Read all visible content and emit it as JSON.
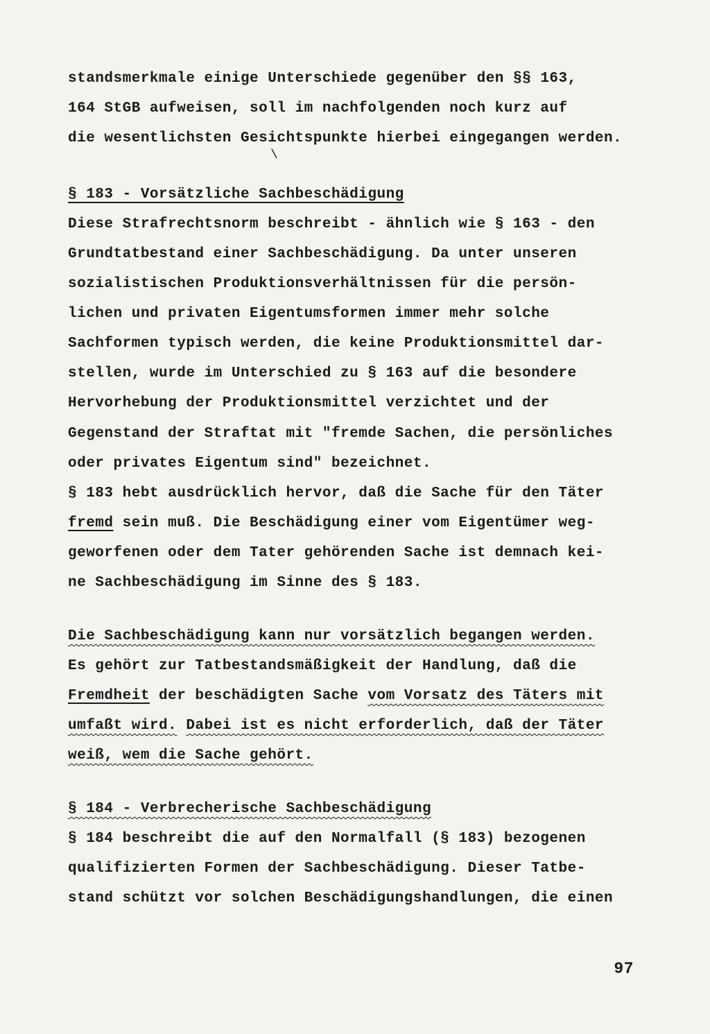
{
  "colors": {
    "background": "#f5f3ef",
    "text": "#1a1a1a"
  },
  "typography": {
    "family": "Courier New",
    "size_pt": 21,
    "weight": "bold",
    "line_height": 2.05,
    "letter_spacing": 0.5
  },
  "intro": {
    "line1a": "standsmerkmale einige",
    "line1b": " Unterschiede gegenüber den §§ 163,",
    "line2": "164 StGB aufweisen, soll im nachfolgenden noch kurz auf",
    "line3": "die wesentlichsten Gesichtspunkte hierbei eingegangen werden."
  },
  "tick": "\\",
  "s183": {
    "heading": "§ 183 - Vorsätzliche Sachbeschädigung",
    "p1_l1": "Diese Strafrechtsnorm beschreibt - ähnlich wie § 163 - den",
    "p1_l2": "Grundtatbestand einer Sachbeschädigung. Da unter unseren",
    "p1_l3": "sozialistischen Produktionsverhältnissen für die persön-",
    "p1_l4": "lichen und privaten Eigentumsformen immer mehr solche",
    "p1_l5": "Sachformen typisch werden, die keine Produktionsmittel dar-",
    "p1_l6": "stellen, wurde im Unterschied zu § 163 auf die besondere",
    "p1_l7": "Hervorhebung der Produktionsmittel verzichtet und der",
    "p1_l8": "Gegenstand der Straftat mit \"fremde Sachen, die persönliches",
    "p1_l9": "oder privates Eigentum  sind\" bezeichnet.",
    "p1_l10a": "§ 183 hebt ausdrücklich hervor, daß die Sache für den Täter",
    "p1_l10u": "fremd",
    "p1_l10b": " sein muß. Die Beschädigung einer vom Eigentümer weg-",
    "p1_l11": "geworfenen oder dem Tater gehörenden Sache ist demnach kei-",
    "p1_l12": "ne Sachbeschädigung im Sinne des § 183.",
    "p2_l1": "Die Sachbeschädigung kann nur vorsätzlich begangen werden.",
    "p2_l2": "Es gehört zur Tatbestandsmäßigkeit der Handlung, daß die",
    "p2_l3u": "Fremdheit",
    "p2_l3b": " der beschädigten Sache ",
    "p2_l3w": "vom Vorsatz des Täters mit",
    "p2_l4w": "umfaßt wird.",
    "p2_l4b": " ",
    "p2_l4w2": "Dabei ist es nicht erforderlich, daß der Täter",
    "p2_l5w": "weiß, wem die Sache gehört."
  },
  "s184": {
    "heading": "§ 184 - Verbrecherische Sachbeschädigung",
    "l1": "§ 184 beschreibt die auf den Normalfall (§ 183) bezogenen",
    "l2": "qualifizierten Formen der Sachbeschädigung. Dieser Tatbe-",
    "l3": "stand schützt vor solchen Beschädigungshandlungen, die einen"
  },
  "page_number": "97"
}
